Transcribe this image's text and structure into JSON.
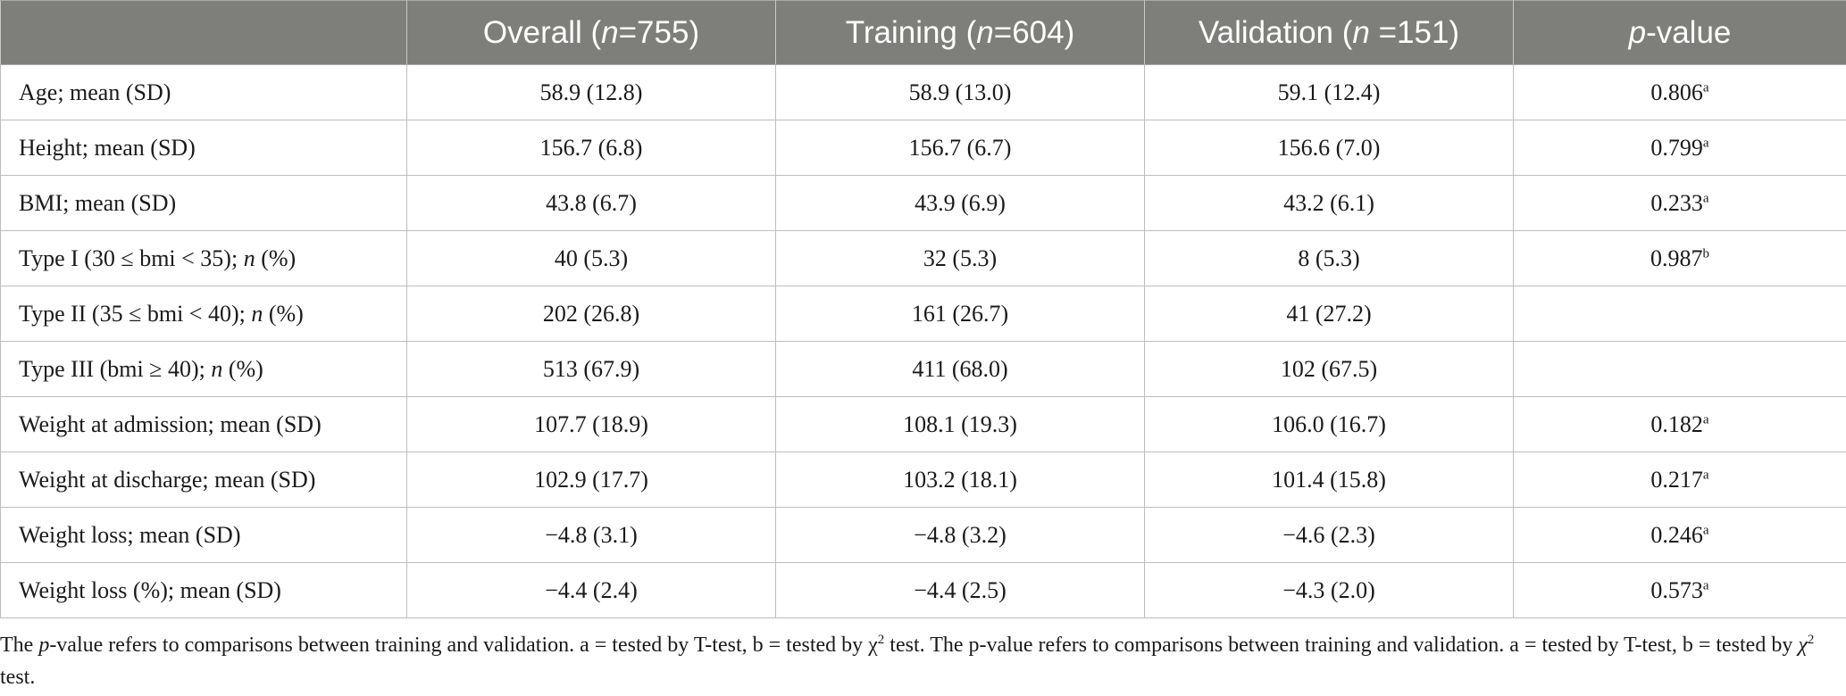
{
  "table": {
    "headers": [
      {
        "pre": "",
        "em": "",
        "post": ""
      },
      {
        "pre": "Overall (",
        "em": "n",
        "post": "=755)"
      },
      {
        "pre": "Training (",
        "em": "n",
        "post": "=604)"
      },
      {
        "pre": "Validation (",
        "em": "n",
        "post": " =151)"
      },
      {
        "pre": "",
        "em": "p",
        "post": "-value"
      }
    ],
    "rows": [
      {
        "label": {
          "pre": "Age; mean (SD)",
          "em": "",
          "post": ""
        },
        "overall": "58.9 (12.8)",
        "training": "58.9 (13.0)",
        "validation": "59.1 (12.4)",
        "p": "0.806",
        "p_sup": "a"
      },
      {
        "label": {
          "pre": "Height; mean (SD)",
          "em": "",
          "post": ""
        },
        "overall": "156.7 (6.8)",
        "training": "156.7 (6.7)",
        "validation": "156.6 (7.0)",
        "p": "0.799",
        "p_sup": "a"
      },
      {
        "label": {
          "pre": "BMI; mean (SD)",
          "em": "",
          "post": ""
        },
        "overall": "43.8 (6.7)",
        "training": "43.9 (6.9)",
        "validation": "43.2 (6.1)",
        "p": "0.233",
        "p_sup": "a"
      },
      {
        "label": {
          "pre": "Type I (30 ≤ bmi < 35); ",
          "em": "n",
          "post": " (%)"
        },
        "overall": "40 (5.3)",
        "training": "32 (5.3)",
        "validation": "8 (5.3)",
        "p": "0.987",
        "p_sup": "b"
      },
      {
        "label": {
          "pre": "Type II (35 ≤ bmi < 40); ",
          "em": "n",
          "post": " (%)"
        },
        "overall": "202 (26.8)",
        "training": "161 (26.7)",
        "validation": "41 (27.2)",
        "p": "",
        "p_sup": ""
      },
      {
        "label": {
          "pre": "Type III (bmi ≥ 40); ",
          "em": "n",
          "post": " (%)"
        },
        "overall": "513 (67.9)",
        "training": "411 (68.0)",
        "validation": "102 (67.5)",
        "p": "",
        "p_sup": ""
      },
      {
        "label": {
          "pre": "Weight at admission; mean (SD)",
          "em": "",
          "post": ""
        },
        "overall": "107.7 (18.9)",
        "training": "108.1 (19.3)",
        "validation": "106.0 (16.7)",
        "p": "0.182",
        "p_sup": "a"
      },
      {
        "label": {
          "pre": "Weight at discharge; mean (SD)",
          "em": "",
          "post": ""
        },
        "overall": "102.9 (17.7)",
        "training": "103.2 (18.1)",
        "validation": "101.4 (15.8)",
        "p": "0.217",
        "p_sup": "a"
      },
      {
        "label": {
          "pre": "Weight loss; mean (SD)",
          "em": "",
          "post": ""
        },
        "overall": "−4.8 (3.1)",
        "training": "−4.8 (3.2)",
        "validation": "−4.6 (2.3)",
        "p": "0.246",
        "p_sup": "a"
      },
      {
        "label": {
          "pre": "Weight loss (%); mean (SD)",
          "em": "",
          "post": ""
        },
        "overall": "−4.4 (2.4)",
        "training": "−4.4 (2.5)",
        "validation": "−4.3 (2.0)",
        "p": "0.573",
        "p_sup": "a"
      }
    ]
  },
  "footnote": {
    "s1": "The ",
    "e1": "p",
    "s2": "-value refers to comparisons between training and validation. a = tested by T-test, b = tested by χ",
    "sup1": "2",
    "s3": " test. The p-value refers to comparisons between training and validation. a = tested by T-test, b = tested by ",
    "e2": "χ",
    "sup2": "2",
    "s4": " test."
  }
}
